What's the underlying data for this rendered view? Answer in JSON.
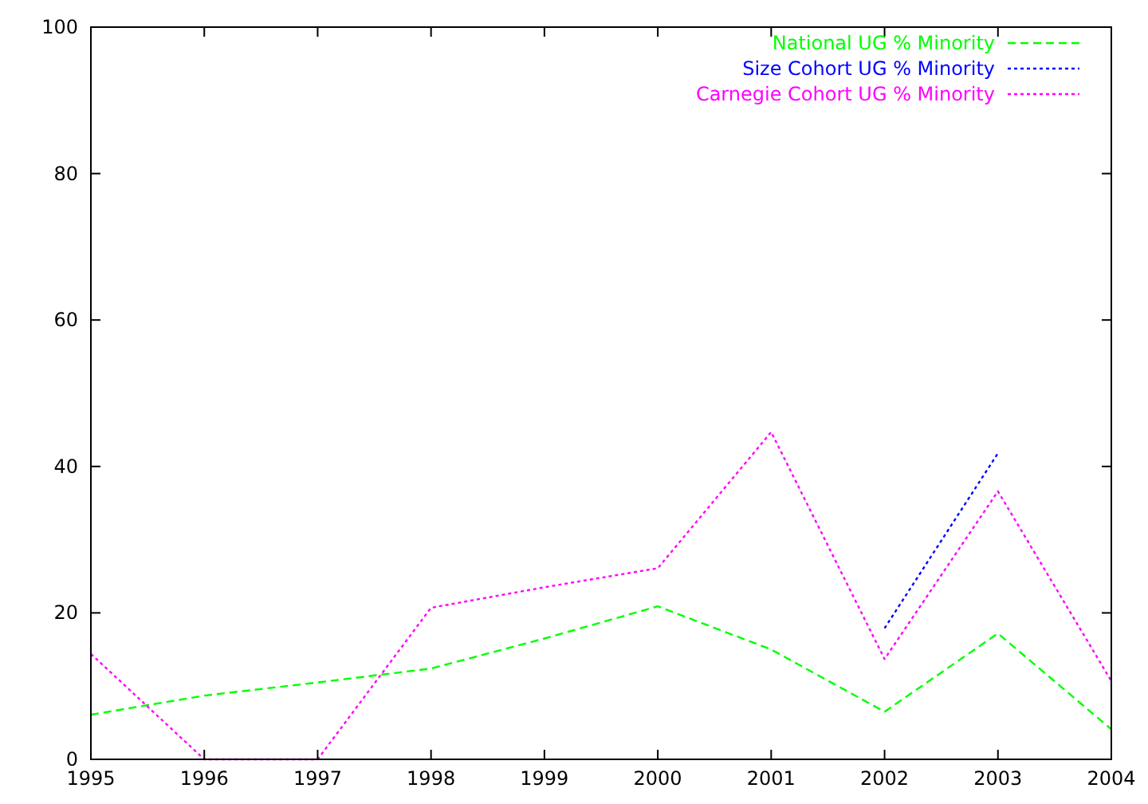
{
  "chart_data": {
    "type": "line",
    "x": [
      1995,
      1996,
      1997,
      1998,
      1999,
      2000,
      2001,
      2002,
      2003,
      2004
    ],
    "series": [
      {
        "name": "National UG % Minority",
        "color": "#00ff00",
        "line_style": "dashed",
        "values": [
          6.1,
          8.7,
          10.5,
          12.4,
          16.5,
          20.9,
          15.0,
          6.5,
          17.2,
          4.1
        ]
      },
      {
        "name": "Size Cohort UG % Minority",
        "color": "#0000ff",
        "line_style": "dotted",
        "values": [
          null,
          null,
          null,
          null,
          null,
          null,
          null,
          17.9,
          41.8,
          null
        ]
      },
      {
        "name": "Carnegie Cohort UG % Minority",
        "color": "#ff00ff",
        "line_style": "dotted",
        "values": [
          14.4,
          0,
          0,
          20.7,
          23.5,
          26.1,
          44.7,
          13.7,
          36.6,
          10.7
        ]
      }
    ],
    "xlim": [
      1995,
      2004
    ],
    "xticks": [
      1995,
      1996,
      1997,
      1998,
      1999,
      2000,
      2001,
      2002,
      2003,
      2004
    ],
    "ylim": [
      0,
      100
    ],
    "yticks": [
      0,
      20,
      40,
      60,
      80,
      100
    ],
    "grid": false,
    "legend": "top right",
    "marker": "none"
  }
}
